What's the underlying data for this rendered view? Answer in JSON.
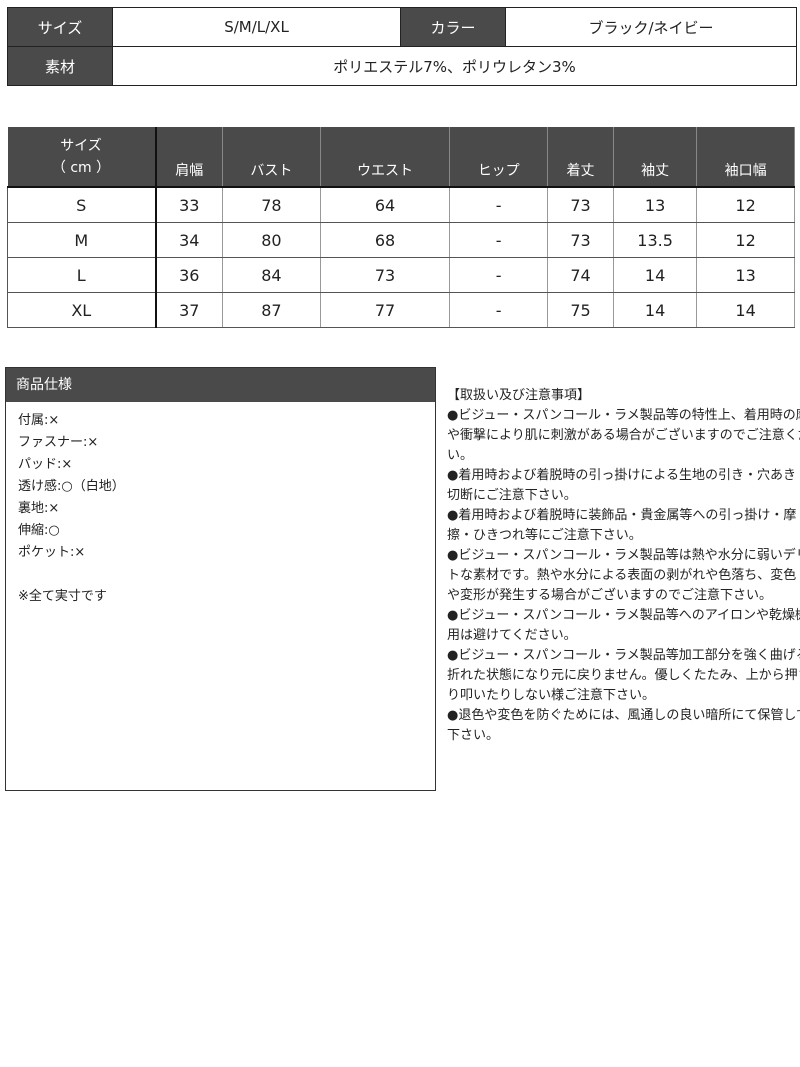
{
  "info": {
    "size_label": "サイズ",
    "size_value": "S/M/L/XL",
    "color_label": "カラー",
    "color_value": "ブラック/ネイビー",
    "material_label": "素材",
    "material_value": "ポリエステル7%、ポリウレタン3%"
  },
  "size_table": {
    "header_line1": "サイズ",
    "header_line2": "（ cm ）",
    "columns": [
      "肩幅",
      "バスト",
      "ウエスト",
      "ヒップ",
      "着丈",
      "袖丈",
      "袖口幅"
    ],
    "rows": [
      [
        "S",
        "33",
        "78",
        "64",
        "-",
        "73",
        "13",
        "12"
      ],
      [
        "M",
        "34",
        "80",
        "68",
        "-",
        "73",
        "13.5",
        "12"
      ],
      [
        "L",
        "36",
        "84",
        "73",
        "-",
        "74",
        "14",
        "13"
      ],
      [
        "XL",
        "37",
        "87",
        "77",
        "-",
        "75",
        "14",
        "14"
      ]
    ]
  },
  "spec": {
    "title": "商品仕様",
    "items": [
      "付属:×",
      "ファスナー:×",
      "パッド:×",
      "透け感:○（白地）",
      "裏地:×",
      "伸縮:○",
      "ポケット:×",
      "",
      "※全て実寸です"
    ]
  },
  "notes": {
    "lines": [
      "【取扱い及び注意事項】",
      "●ビジュー・スパンコール・ラメ製品等の特性上、着用時の摩擦",
      "や衝撃により肌に刺激がある場合がございますのでご注意くださ",
      "い。",
      "●着用時および着脱時の引っ掛けによる生地の引き・穴あき・",
      "切断にご注意下さい。",
      "●着用時および着脱時に装飾品・貴金属等への引っ掛け・摩",
      "擦・ひきつれ等にご注意下さい。",
      "●ビジュー・スパンコール・ラメ製品等は熱や水分に弱いデリケー",
      "トな素材です。熱や水分による表面の剥がれや色落ち、変色",
      "や変形が発生する場合がございますのでご注意下さい。",
      "●ビジュー・スパンコール・ラメ製品等へのアイロンや乾燥機の使",
      "用は避けてください。",
      "●ビジュー・スパンコール・ラメ製品等加工部分を強く曲げると",
      "折れた状態になり元に戻りません。優しくたたみ、上から押さえた",
      "り叩いたりしない様ご注意下さい。",
      "●退色や変色を防ぐためには、風通しの良い暗所にて保管して",
      "下さい。"
    ]
  }
}
